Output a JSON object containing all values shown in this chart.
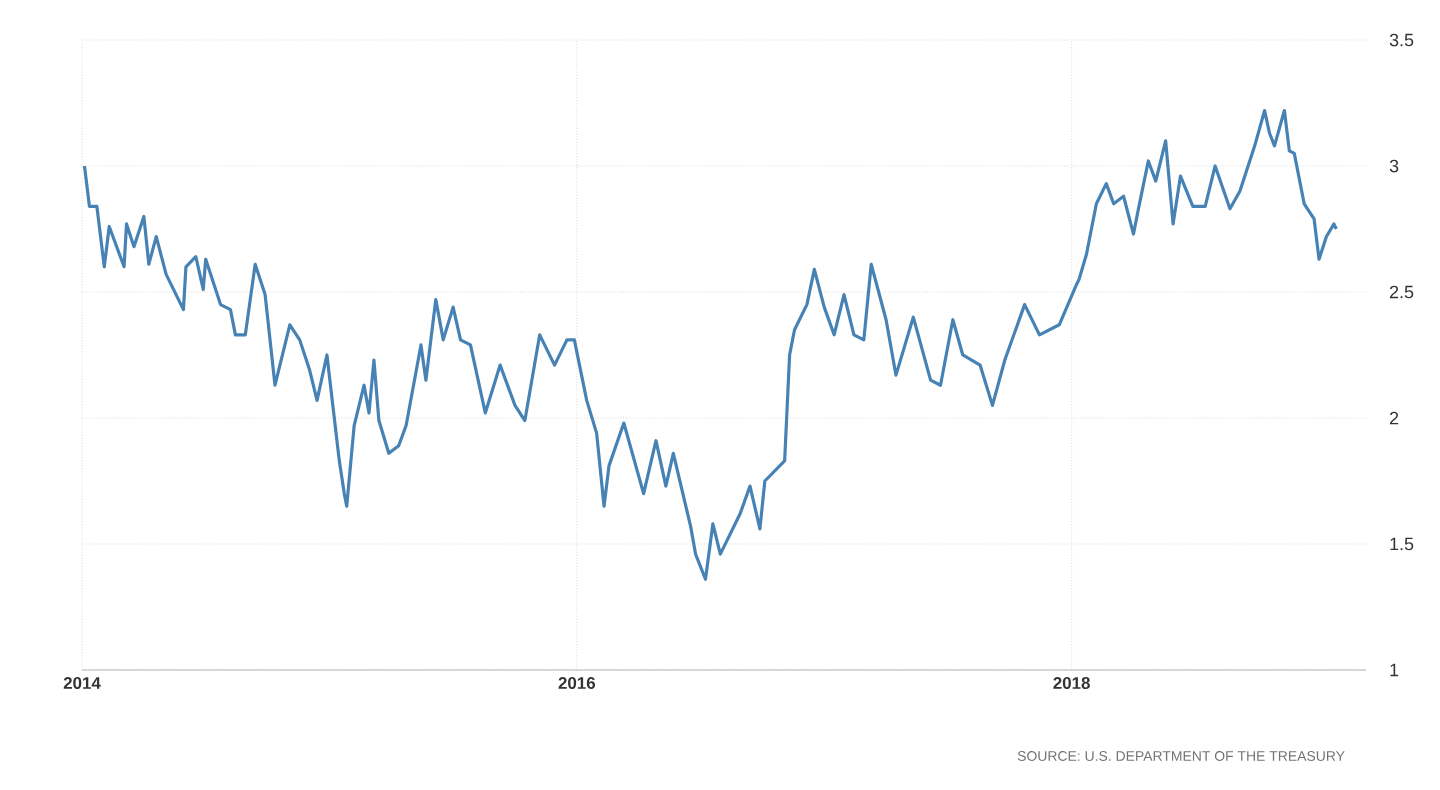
{
  "chart_data": {
    "type": "line",
    "color": "#4682b4",
    "line_style": "solid",
    "grid": true,
    "xlim": [
      2014,
      2019.19
    ],
    "ylim": [
      1,
      3.5
    ],
    "xticks": [
      2014,
      2016,
      2018
    ],
    "yticks": [
      1,
      1.5,
      2,
      2.5,
      3,
      3.5
    ],
    "x": [
      2014.01,
      2014.03,
      2014.06,
      2014.09,
      2014.11,
      2014.17,
      2014.18,
      2014.21,
      2014.25,
      2014.27,
      2014.3,
      2014.34,
      2014.41,
      2014.42,
      2014.46,
      2014.49,
      2014.5,
      2014.56,
      2014.6,
      2014.62,
      2014.66,
      2014.7,
      2014.74,
      2014.78,
      2014.84,
      2014.88,
      2014.92,
      2014.95,
      2014.99,
      2015.04,
      2015.06,
      2015.07,
      2015.1,
      2015.14,
      2015.16,
      2015.18,
      2015.2,
      2015.24,
      2015.28,
      2015.31,
      2015.37,
      2015.39,
      2015.43,
      2015.46,
      2015.5,
      2015.53,
      2015.57,
      2015.63,
      2015.69,
      2015.75,
      2015.79,
      2015.85,
      2015.91,
      2015.96,
      2015.99,
      2016.04,
      2016.08,
      2016.11,
      2016.13,
      2016.19,
      2016.27,
      2016.32,
      2016.36,
      2016.39,
      2016.46,
      2016.48,
      2016.52,
      2016.55,
      2016.58,
      2016.66,
      2016.7,
      2016.74,
      2016.76,
      2016.84,
      2016.86,
      2016.88,
      2016.93,
      2016.96,
      2017.0,
      2017.04,
      2017.08,
      2017.12,
      2017.16,
      2017.19,
      2017.25,
      2017.29,
      2017.36,
      2017.43,
      2017.47,
      2017.52,
      2017.56,
      2017.63,
      2017.68,
      2017.73,
      2017.81,
      2017.87,
      2017.95,
      2018.02,
      2018.03,
      2018.06,
      2018.1,
      2018.14,
      2018.17,
      2018.21,
      2018.25,
      2018.27,
      2018.31,
      2018.34,
      2018.38,
      2018.41,
      2018.44,
      2018.49,
      2018.54,
      2018.58,
      2018.64,
      2018.68,
      2018.74,
      2018.78,
      2018.8,
      2018.82,
      2018.86,
      2018.88,
      2018.9,
      2018.94,
      2018.98,
      2019.0,
      2019.03,
      2019.06,
      2019.07
    ],
    "values": [
      3.0,
      2.84,
      2.84,
      2.6,
      2.76,
      2.6,
      2.77,
      2.68,
      2.8,
      2.61,
      2.72,
      2.57,
      2.43,
      2.6,
      2.64,
      2.51,
      2.63,
      2.45,
      2.43,
      2.33,
      2.33,
      2.61,
      2.49,
      2.13,
      2.37,
      2.31,
      2.19,
      2.07,
      2.25,
      1.83,
      1.7,
      1.65,
      1.97,
      2.13,
      2.02,
      2.23,
      1.99,
      1.86,
      1.89,
      1.97,
      2.29,
      2.15,
      2.47,
      2.31,
      2.44,
      2.31,
      2.29,
      2.02,
      2.21,
      2.05,
      1.99,
      2.33,
      2.21,
      2.31,
      2.31,
      2.07,
      1.94,
      1.65,
      1.81,
      1.98,
      1.7,
      1.91,
      1.73,
      1.86,
      1.57,
      1.46,
      1.36,
      1.58,
      1.46,
      1.62,
      1.73,
      1.56,
      1.75,
      1.83,
      2.25,
      2.35,
      2.45,
      2.59,
      2.44,
      2.33,
      2.49,
      2.33,
      2.31,
      2.61,
      2.39,
      2.17,
      2.4,
      2.15,
      2.13,
      2.39,
      2.25,
      2.21,
      2.05,
      2.23,
      2.45,
      2.33,
      2.37,
      2.53,
      2.55,
      2.65,
      2.85,
      2.93,
      2.85,
      2.88,
      2.73,
      2.83,
      3.02,
      2.94,
      3.1,
      2.77,
      2.96,
      2.84,
      2.84,
      3.0,
      2.83,
      2.9,
      3.08,
      3.22,
      3.13,
      3.08,
      3.22,
      3.06,
      3.05,
      2.85,
      2.79,
      2.63,
      2.72,
      2.77,
      2.75
    ],
    "annotations": [
      "SOURCE: U.S. DEPARTMENT OF THE TREASURY"
    ]
  }
}
